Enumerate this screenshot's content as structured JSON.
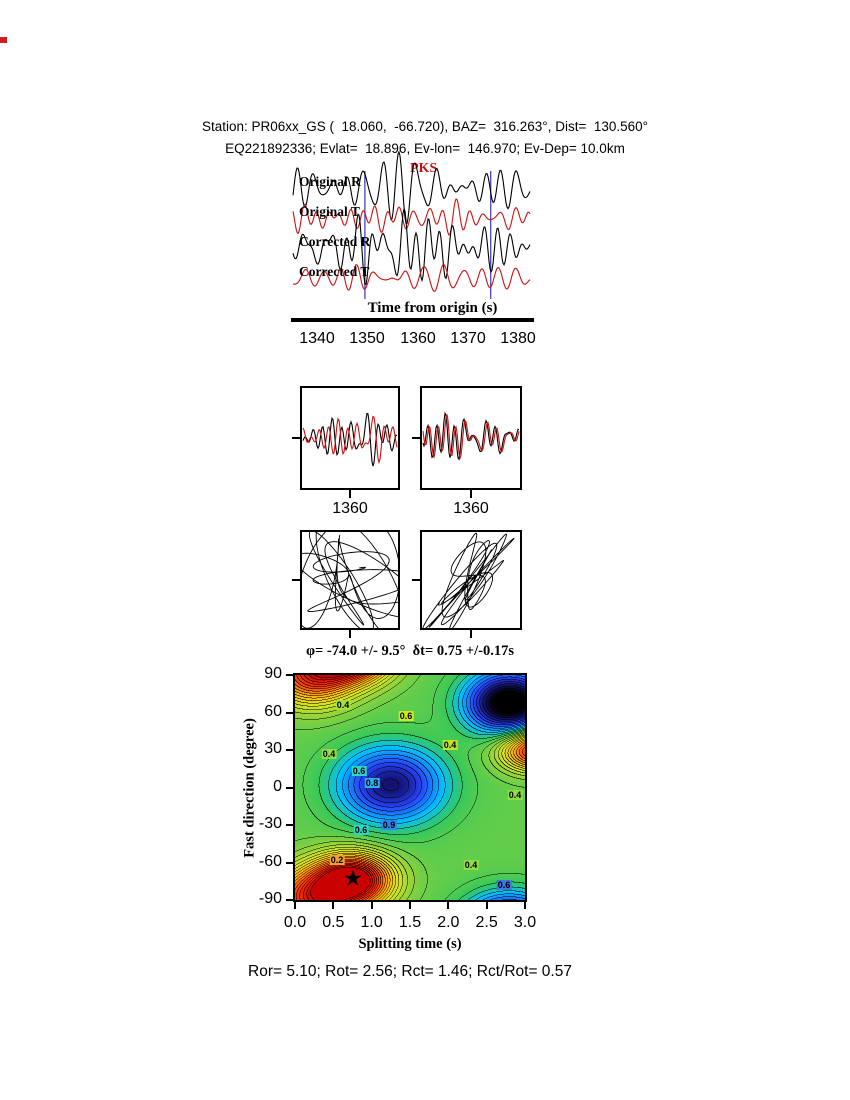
{
  "header": {
    "line1": "Station: PR06xx_GS (  18.060,  -66.720), BAZ=  316.263°, Dist=  130.560°",
    "line2": "EQ221892336; Evlat=  18.896, Ev-lon=  146.970; Ev-Dep= 10.0km"
  },
  "footer": {
    "text": "Ror= 5.10; Rot= 2.56; Rct= 1.46; Rct/Rot= 0.57"
  },
  "measurements": {
    "phi_deg": -74.0,
    "phi_err_deg": 9.5,
    "dt_s": 0.75,
    "dt_err_s": 0.17,
    "Ror": 5.1,
    "Rot": 2.56,
    "Rct": 1.46,
    "Rct_over_Rot": 0.57
  },
  "chart_data": [
    {
      "type": "line",
      "id": "waveforms",
      "phase_label": "PKS",
      "phase_color": "#cc1111",
      "xlabel": "Time from origin (s)",
      "xlim": [
        1335.6,
        1382.3
      ],
      "xticks": [
        1340,
        1350,
        1360,
        1370,
        1380
      ],
      "window": [
        1349.5,
        1374.5
      ],
      "window_color": "#4444bb",
      "traces": [
        {
          "label": "Original R",
          "color": "#000000",
          "seed": 11,
          "amp": 10,
          "env": 0.9
        },
        {
          "label": "Original T",
          "color": "#cc1111",
          "seed": 23,
          "amp": 7,
          "env": 0.4
        },
        {
          "label": "Corrected R",
          "color": "#000000",
          "seed": 37,
          "amp": 13,
          "env": 0.8
        },
        {
          "label": "Corrected T",
          "color": "#cc1111",
          "seed": 49,
          "amp": 8,
          "env": 0.3
        }
      ]
    },
    {
      "type": "line",
      "id": "window-comparison",
      "panels": [
        {
          "tick_label": "1360",
          "seed": 55,
          "shift": 6,
          "colors": [
            "#000000",
            "#cc1111"
          ]
        },
        {
          "tick_label": "1360",
          "seed": 66,
          "shift": 1.5,
          "colors": [
            "#000000",
            "#cc1111"
          ]
        }
      ]
    },
    {
      "type": "scatter",
      "id": "particle-motion",
      "panels": [
        {
          "style": "elliptical",
          "seeds": [
            77,
            81
          ]
        },
        {
          "style": "linearized",
          "seeds": [
            93,
            97
          ],
          "mix": [
            0.85,
            0.35,
            0.85,
            -0.25
          ]
        }
      ]
    },
    {
      "type": "heatmap",
      "id": "splitting-misfit",
      "title": "φ= -74.0 +/- 9.5°  δt= 0.75 +/-0.17s",
      "xlabel": "Splitting time (s)",
      "ylabel": "Fast direction (degree)",
      "xlim": [
        0.0,
        3.0
      ],
      "ylim": [
        -90,
        90
      ],
      "xticks": [
        "0.0",
        "0.5",
        "1.0",
        "1.5",
        "2.0",
        "2.5",
        "3.0"
      ],
      "yticks": [
        90,
        60,
        30,
        0,
        -30,
        -60,
        -90
      ],
      "star_symbol": "★",
      "best": {
        "dt": 0.75,
        "phi": -74
      },
      "field": {
        "base": 0.45,
        "period_deg": 180,
        "contour_step": 0.033,
        "blobs": [
          {
            "u": 0.75,
            "v": -74,
            "su": 0.5,
            "sv": 20,
            "a": 0.62
          },
          {
            "u": 0.22,
            "v": 90,
            "su": 0.55,
            "sv": 24,
            "a": 0.42
          },
          {
            "u": 1.25,
            "v": 2,
            "su": 0.68,
            "sv": 30,
            "a": -0.36
          },
          {
            "u": 2.8,
            "v": 68,
            "su": 0.55,
            "sv": 24,
            "a": -0.52
          },
          {
            "u": 3.15,
            "v": 30,
            "su": 0.45,
            "sv": 16,
            "a": 0.48
          }
        ],
        "colormap": [
          [
            0.0,
            "#000000"
          ],
          [
            0.1,
            "#141478"
          ],
          [
            0.2,
            "#2846ff"
          ],
          [
            0.32,
            "#00c0ff"
          ],
          [
            0.4,
            "#37c85a"
          ],
          [
            0.5,
            "#8cd23c"
          ],
          [
            0.6,
            "#d7e61e"
          ],
          [
            0.72,
            "#ffb400"
          ],
          [
            0.85,
            "#ff3c00"
          ],
          [
            1.0,
            "#c80000"
          ]
        ]
      },
      "contour_labels": [
        {
          "u": 0.62,
          "v": 66,
          "t": "0.4",
          "bg": "#a8e03a"
        },
        {
          "u": 1.45,
          "v": 57,
          "t": "0.6",
          "bg": "#d2e61e"
        },
        {
          "u": 2.02,
          "v": 34,
          "t": "0.4",
          "bg": "#bfe32a"
        },
        {
          "u": 0.44,
          "v": 27,
          "t": "0.4",
          "bg": "#8fdc46"
        },
        {
          "u": 0.84,
          "v": 13,
          "t": "0.6",
          "bg": "#2fd6c8"
        },
        {
          "u": 1.0,
          "v": 4,
          "t": "0.8",
          "bg": "#2bb0f0"
        },
        {
          "u": 2.87,
          "v": -6,
          "t": "0.4",
          "bg": "#8fdc46"
        },
        {
          "u": 1.22,
          "v": -30,
          "t": "0.9",
          "bg": "#2f86f0"
        },
        {
          "u": 0.86,
          "v": -34,
          "t": "0.6",
          "bg": "#2fd6c8"
        },
        {
          "u": 0.55,
          "v": -58,
          "t": "0.2",
          "bg": "#f0a030"
        },
        {
          "u": 2.3,
          "v": -62,
          "t": "0.4",
          "bg": "#8fdc46"
        },
        {
          "u": 2.73,
          "v": -78,
          "t": "0.6",
          "bg": "#3c78e0"
        }
      ]
    }
  ]
}
